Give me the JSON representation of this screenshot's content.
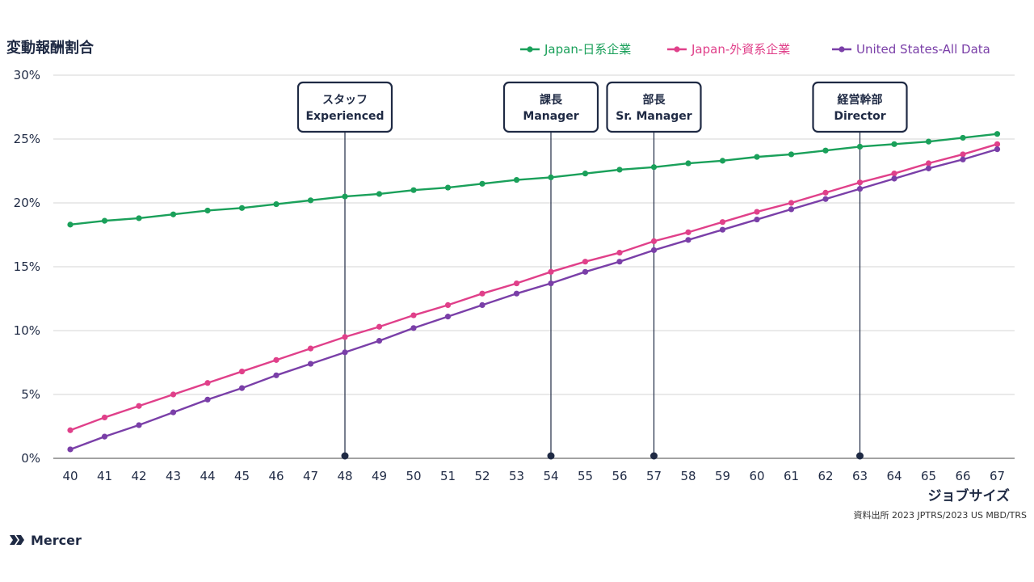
{
  "chart_data": {
    "type": "line",
    "title": "変動報酬割合",
    "xlabel": "ジョブサイズ",
    "ylabel": "",
    "x": [
      40,
      41,
      42,
      43,
      44,
      45,
      46,
      47,
      48,
      49,
      50,
      51,
      52,
      53,
      54,
      55,
      56,
      57,
      58,
      59,
      60,
      61,
      62,
      63,
      64,
      65,
      66,
      67
    ],
    "ylim": [
      0,
      30
    ],
    "yticks": [
      "0%",
      "5%",
      "10%",
      "15%",
      "20%",
      "25%",
      "30%"
    ],
    "grid": true,
    "legend_position": "top-right",
    "series": [
      {
        "name": "Japan-日系企業",
        "color": "#1aa05a",
        "values": [
          18.3,
          18.6,
          18.8,
          19.1,
          19.4,
          19.6,
          19.9,
          20.2,
          20.5,
          20.7,
          21.0,
          21.2,
          21.5,
          21.8,
          22.0,
          22.3,
          22.6,
          22.8,
          23.1,
          23.3,
          23.6,
          23.8,
          24.1,
          24.4,
          24.6,
          24.8,
          25.1,
          25.4
        ]
      },
      {
        "name": "Japan-外資系企業",
        "color": "#e0408a",
        "values": [
          2.2,
          3.2,
          4.1,
          5.0,
          5.9,
          6.8,
          7.7,
          8.6,
          9.5,
          10.3,
          11.2,
          12.0,
          12.9,
          13.7,
          14.6,
          15.4,
          16.1,
          17.0,
          17.7,
          18.5,
          19.3,
          20.0,
          20.8,
          21.6,
          22.3,
          23.1,
          23.8,
          24.6
        ]
      },
      {
        "name": "United States-All Data",
        "color": "#7a3fa8",
        "values": [
          0.7,
          1.7,
          2.6,
          3.6,
          4.6,
          5.5,
          6.5,
          7.4,
          8.3,
          9.2,
          10.2,
          11.1,
          12.0,
          12.9,
          13.7,
          14.6,
          15.4,
          16.3,
          17.1,
          17.9,
          18.7,
          19.5,
          20.3,
          21.1,
          21.9,
          22.7,
          23.4,
          24.2
        ]
      }
    ],
    "annotations": [
      {
        "x": 48,
        "label_top": "スタッフ",
        "label_bottom": "Experienced"
      },
      {
        "x": 54,
        "label_top": "課長",
        "label_bottom": "Manager"
      },
      {
        "x": 57,
        "label_top": "部長",
        "label_bottom": "Sr. Manager"
      },
      {
        "x": 63,
        "label_top": "経営幹部",
        "label_bottom": "Director"
      }
    ],
    "source": "資料出所 2023 JPTRS/2023 US MBD/TRS"
  },
  "brand": {
    "name": "Mercer",
    "color": "#1f2a44"
  },
  "colors": {
    "annotation": "#1f2a44",
    "grid": "#d6d6d6",
    "axis": "#444444"
  }
}
